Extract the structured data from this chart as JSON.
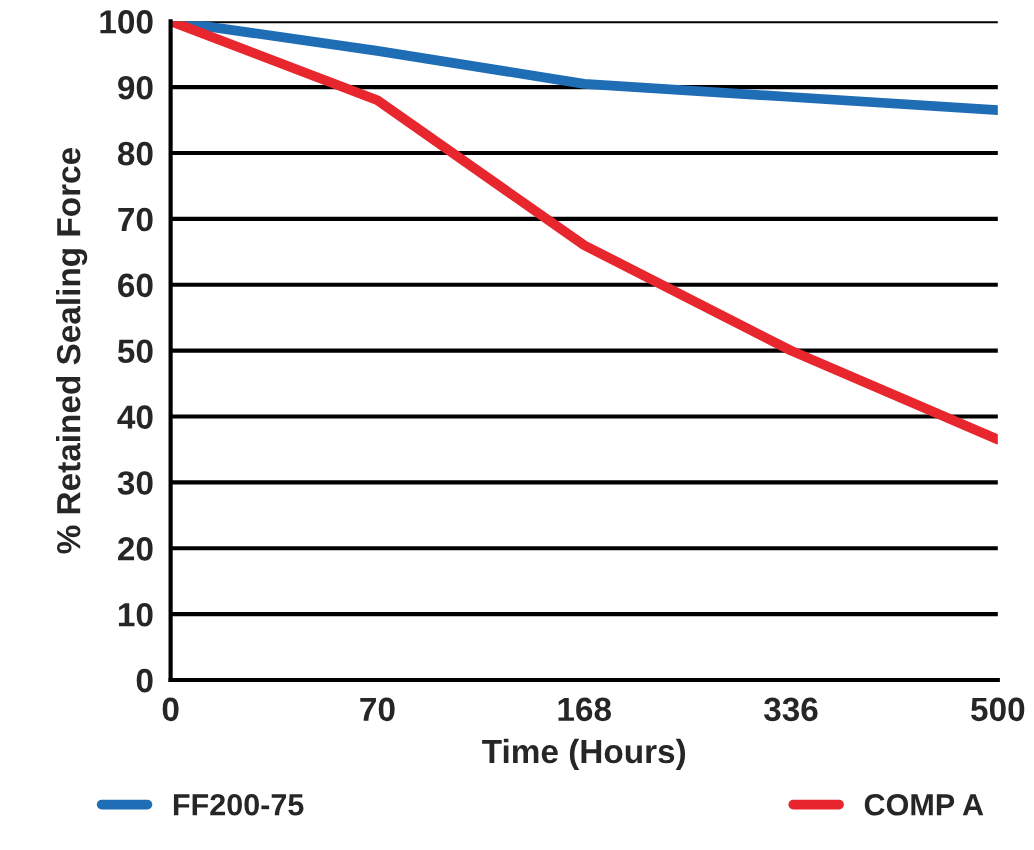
{
  "chart_data": {
    "type": "line",
    "xlabel": "Time (Hours)",
    "ylabel": "% Retained Sealing Force",
    "categories": [
      "0",
      "70",
      "168",
      "336",
      "500"
    ],
    "series": [
      {
        "name": "FF200-75",
        "color": "#1f6db5",
        "values": [
          100,
          95.5,
          90.5,
          88.5,
          86.5
        ]
      },
      {
        "name": "COMP A",
        "color": "#e8262e",
        "values": [
          100,
          88,
          66,
          50,
          36.5
        ]
      }
    ],
    "ylim": [
      0,
      100
    ],
    "yticks": [
      0,
      10,
      20,
      30,
      40,
      50,
      60,
      70,
      80,
      90,
      100
    ],
    "grid": "y",
    "legend": "bottom",
    "marker": "none",
    "line_style": "solid"
  }
}
